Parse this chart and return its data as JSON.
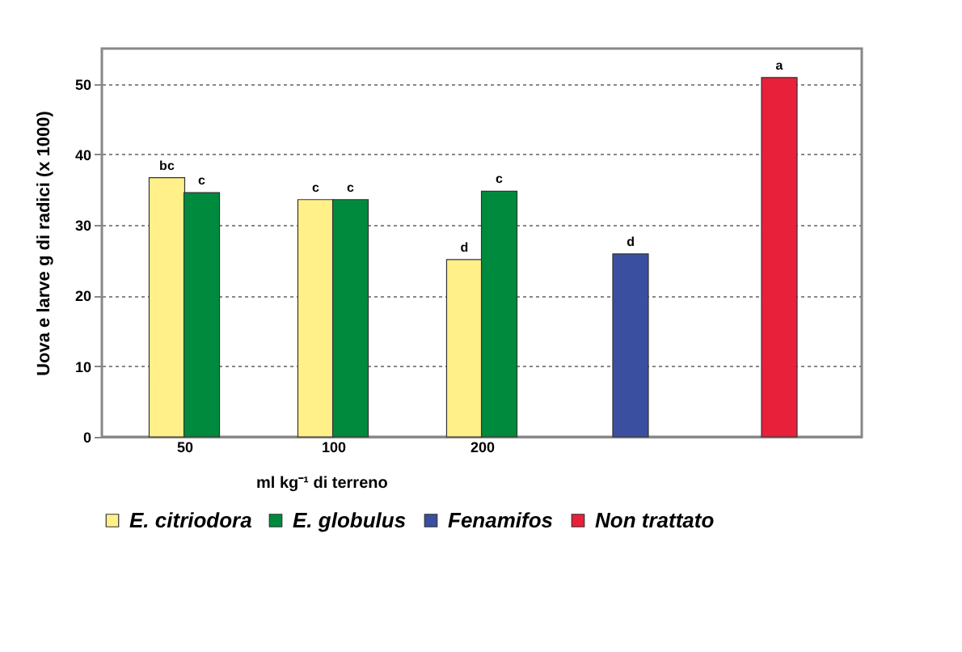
{
  "chart_data": {
    "type": "bar",
    "xlabel": "ml kg⁻¹ di terreno",
    "ylabel": "Uova e larve g di radici (x 1000)",
    "categories": [
      "50",
      "100",
      "200",
      null,
      null
    ],
    "series": [
      {
        "name": "E. citriodora",
        "color": "#fff08a",
        "values": [
          36.7,
          33.6,
          25.1,
          null,
          null
        ],
        "value_labels": [
          "bc",
          "c",
          "d",
          null,
          null
        ]
      },
      {
        "name": "E. globulus",
        "color": "#008a3e",
        "values": [
          34.6,
          33.6,
          34.8,
          null,
          null
        ],
        "value_labels": [
          "c",
          "c",
          "c",
          null,
          null
        ]
      },
      {
        "name": "Fenamifos",
        "color": "#3a4fa0",
        "values": [
          null,
          null,
          null,
          25.9,
          null
        ],
        "value_labels": [
          null,
          null,
          null,
          "d",
          null
        ]
      },
      {
        "name": "Non trattato",
        "color": "#e8203a",
        "values": [
          null,
          null,
          null,
          null,
          50.9
        ],
        "value_labels": [
          null,
          null,
          null,
          null,
          "a"
        ]
      }
    ],
    "ylim": [
      0,
      55
    ],
    "yticks": [
      0,
      10,
      20,
      30,
      40,
      50
    ],
    "grid": "y",
    "legend": "bottom"
  }
}
